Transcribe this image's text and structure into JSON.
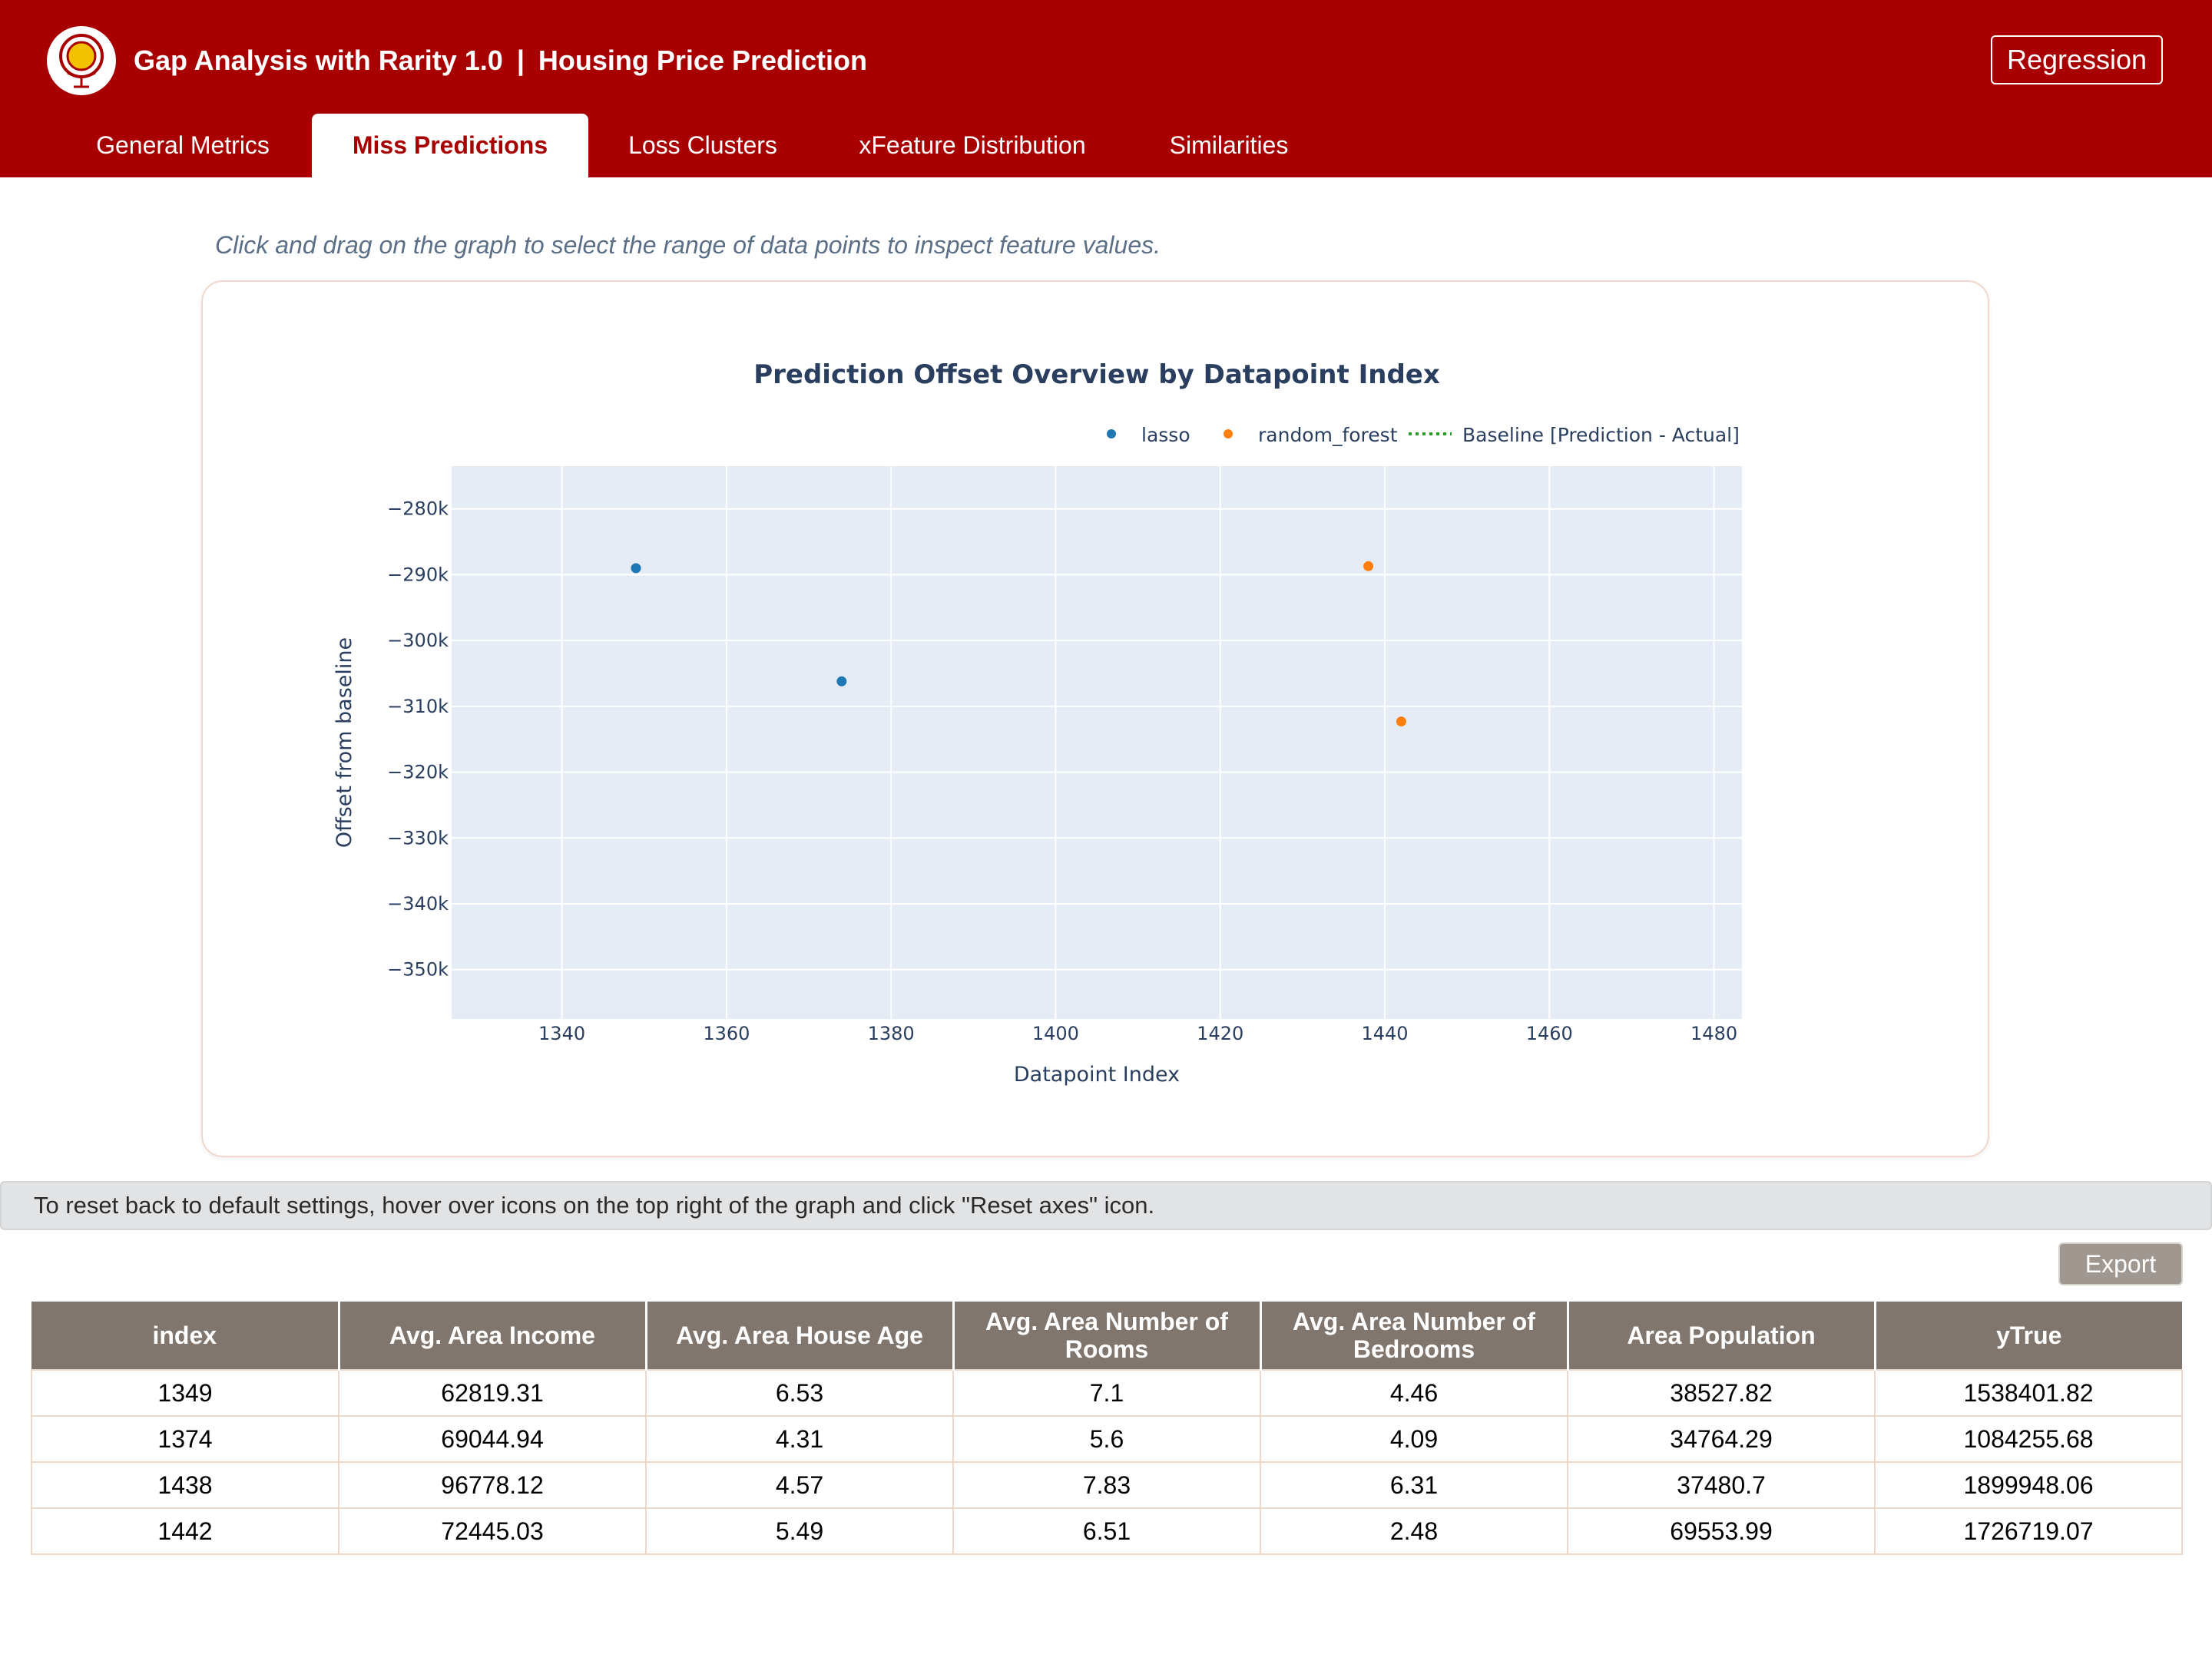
{
  "app": {
    "title": "Gap Analysis with Rarity 1.0",
    "separator": "|",
    "subtitle": "Housing Price Prediction",
    "mode_badge": "Regression",
    "brand_color": "#a80000"
  },
  "tabs": [
    {
      "label": "General Metrics",
      "active": false
    },
    {
      "label": "Miss Predictions",
      "active": true
    },
    {
      "label": "Loss Clusters",
      "active": false
    },
    {
      "label": "xFeature Distribution",
      "active": false
    },
    {
      "label": "Similarities",
      "active": false
    }
  ],
  "instruction": "Click and drag on the graph to select the range of data points to inspect feature values.",
  "chart_data": {
    "type": "scatter",
    "title": "Prediction Offset Overview by Datapoint Index",
    "xlabel": "Datapoint Index",
    "ylabel": "Offset from baseline",
    "xlim": [
      1326.6,
      1483.4
    ],
    "ylim": [
      -357.5,
      -273.5
    ],
    "x_ticks": [
      1340,
      1360,
      1380,
      1400,
      1420,
      1440,
      1460,
      1480
    ],
    "y_ticks": [
      -280,
      -290,
      -300,
      -310,
      -320,
      -330,
      -340,
      -350
    ],
    "y_tick_suffix": "k",
    "grid": true,
    "legend_position": "top-right",
    "series": [
      {
        "name": "lasso",
        "color": "#1f77b4",
        "x": [
          1349,
          1374
        ],
        "y": [
          -289,
          -306.2
        ]
      },
      {
        "name": "random_forest",
        "color": "#ff7f0e",
        "x": [
          1438,
          1442
        ],
        "y": [
          -288.7,
          -312.3
        ]
      }
    ],
    "baseline": {
      "name": "Baseline [Prediction - Actual]",
      "color": "#2ca02c",
      "style": "dotted"
    }
  },
  "hint": "To reset back to default settings, hover over icons on the top right of the graph and click \"Reset axes\" icon.",
  "export_label": "Export",
  "table": {
    "columns": [
      "index",
      "Avg. Area Income",
      "Avg. Area House Age",
      "Avg. Area Number of Rooms",
      "Avg. Area Number of Bedrooms",
      "Area Population",
      "yTrue"
    ],
    "rows": [
      [
        "1349",
        "62819.31",
        "6.53",
        "7.1",
        "4.46",
        "38527.82",
        "1538401.82"
      ],
      [
        "1374",
        "69044.94",
        "4.31",
        "5.6",
        "4.09",
        "34764.29",
        "1084255.68"
      ],
      [
        "1438",
        "96778.12",
        "4.57",
        "7.83",
        "6.31",
        "37480.7",
        "1899948.06"
      ],
      [
        "1442",
        "72445.03",
        "5.49",
        "6.51",
        "2.48",
        "69553.99",
        "1726719.07"
      ]
    ]
  }
}
